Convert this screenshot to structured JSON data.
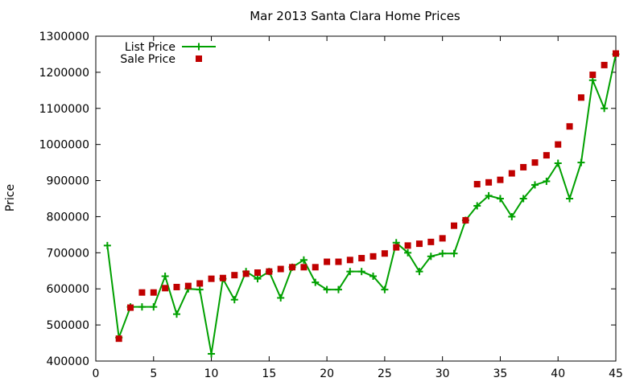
{
  "chart_data": {
    "type": "line",
    "title": "Mar 2013 Santa Clara Home Prices",
    "xlabel": "",
    "ylabel": "Price",
    "xlim": [
      0,
      45
    ],
    "ylim": [
      400000,
      1300000
    ],
    "xticks": [
      0,
      5,
      10,
      15,
      20,
      25,
      30,
      35,
      40,
      45
    ],
    "yticks": [
      400000,
      500000,
      600000,
      700000,
      800000,
      900000,
      1000000,
      1100000,
      1200000,
      1300000
    ],
    "grid": false,
    "legend_position": "top-left",
    "series": [
      {
        "name": "List Price",
        "style": "linespoints",
        "marker": "plus",
        "color": "#00a000",
        "x": [
          1,
          2,
          3,
          4,
          5,
          6,
          7,
          8,
          9,
          10,
          11,
          12,
          13,
          14,
          15,
          16,
          17,
          18,
          19,
          20,
          21,
          22,
          23,
          24,
          25,
          26,
          27,
          28,
          29,
          30,
          31,
          32,
          33,
          34,
          35,
          36,
          37,
          38,
          39,
          40,
          41,
          42,
          43,
          44,
          45
        ],
        "values": [
          720000,
          465000,
          550000,
          550000,
          550000,
          635000,
          530000,
          600000,
          598000,
          420000,
          628000,
          570000,
          648000,
          628000,
          648000,
          575000,
          660000,
          680000,
          618000,
          598000,
          598000,
          648000,
          648000,
          635000,
          598000,
          728000,
          700000,
          648000,
          690000,
          698000,
          698000,
          790000,
          830000,
          858000,
          850000,
          800000,
          850000,
          888000,
          898000,
          948000,
          850000,
          950000,
          1178000,
          1100000,
          1250000
        ]
      },
      {
        "name": "Sale Price",
        "style": "points",
        "marker": "square",
        "color": "#c00000",
        "x": [
          2,
          3,
          4,
          5,
          6,
          7,
          8,
          9,
          10,
          11,
          12,
          13,
          14,
          15,
          16,
          17,
          18,
          19,
          20,
          21,
          22,
          23,
          24,
          25,
          26,
          27,
          28,
          29,
          30,
          31,
          32,
          33,
          34,
          35,
          36,
          37,
          38,
          39,
          40,
          41,
          42,
          43,
          44,
          45
        ],
        "values": [
          462000,
          548000,
          590000,
          590000,
          602000,
          605000,
          608000,
          615000,
          628000,
          630000,
          638000,
          642000,
          645000,
          648000,
          655000,
          660000,
          660000,
          660000,
          675000,
          675000,
          680000,
          685000,
          690000,
          698000,
          715000,
          720000,
          725000,
          730000,
          740000,
          775000,
          790000,
          890000,
          895000,
          902000,
          920000,
          937000,
          950000,
          970000,
          1000000,
          1050000,
          1130000,
          1193000,
          1220000,
          1252000
        ]
      }
    ]
  }
}
